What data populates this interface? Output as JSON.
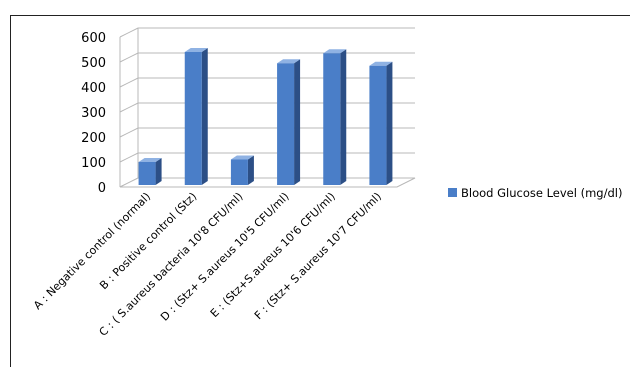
{
  "chart_data": {
    "type": "bar",
    "title": "",
    "xlabel": "",
    "ylabel": "",
    "categories": [
      "A : Negative control (normal)",
      "B : Positive control (Stz)",
      "C : ( S.aureus  bacteria 10'8 CFU/ml)",
      "D :  (Stz+ S.aureus  10'5 CFU/ml)",
      "E :  (Stz+S.aureus  10'6 CFU/ml)",
      "F :  (Stz+ S.aureus 10'7 CFU/ml)"
    ],
    "series": [
      {
        "name": "Blood Glucose  Level  (mg/dl)",
        "values": [
          100,
          540,
          110,
          495,
          535,
          485
        ]
      }
    ],
    "ylim": [
      0,
      600
    ],
    "yticks": [
      0,
      100,
      200,
      300,
      400,
      500,
      600
    ],
    "grid": true,
    "legend": "right",
    "colors": {
      "bar_front": "#4a7ec8",
      "bar_side": "#2c4f86",
      "bar_top": "#8fb2e3",
      "grid": "#b8b8b8"
    }
  }
}
